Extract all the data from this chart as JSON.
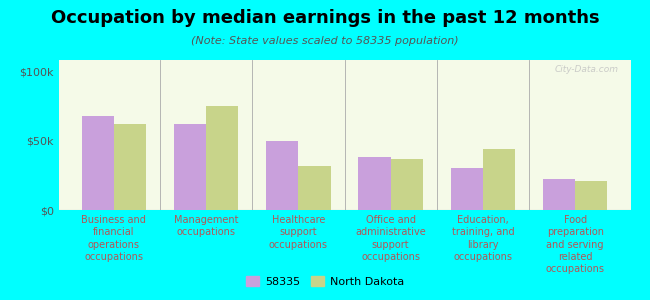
{
  "title": "Occupation by median earnings in the past 12 months",
  "subtitle": "(Note: State values scaled to 58335 population)",
  "categories": [
    "Business and\nfinancial\noperations\noccupations",
    "Management\noccupations",
    "Healthcare\nsupport\noccupations",
    "Office and\nadministrative\nsupport\noccupations",
    "Education,\ntraining, and\nlibrary\noccupations",
    "Food\npreparation\nand serving\nrelated\noccupations"
  ],
  "values_58335": [
    68000,
    62000,
    50000,
    38000,
    30000,
    22000
  ],
  "values_nd": [
    62000,
    75000,
    32000,
    37000,
    44000,
    21000
  ],
  "color_58335": "#c9a0dc",
  "color_nd": "#c8d48a",
  "legend_labels": [
    "58335",
    "North Dakota"
  ],
  "yticks": [
    0,
    50000,
    100000
  ],
  "ytick_labels": [
    "$0",
    "$50k",
    "$100k"
  ],
  "ylim": [
    0,
    108000
  ],
  "background_color": "#00ffff",
  "plot_bg_color": "#f5fae8",
  "watermark": "City-Data.com",
  "title_fontsize": 13,
  "subtitle_fontsize": 8,
  "tick_label_fontsize": 7,
  "ytick_fontsize": 8,
  "legend_fontsize": 8
}
